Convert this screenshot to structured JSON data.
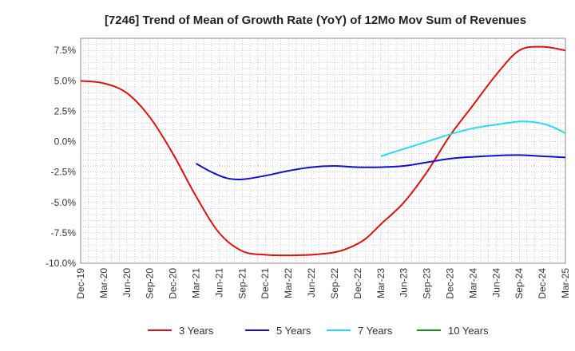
{
  "chart_data": {
    "type": "line",
    "title": "[7246]  Trend of Mean of Growth Rate (YoY) of 12Mo Mov Sum of Revenues",
    "xlabel": "",
    "ylabel": "",
    "ylim": [
      -10,
      8.5
    ],
    "yticks": [
      7.5,
      5.0,
      2.5,
      0.0,
      -2.5,
      -5.0,
      -7.5,
      -10.0
    ],
    "ytick_labels": [
      "7.5%",
      "5.0%",
      "2.5%",
      "0.0%",
      "-2.5%",
      "-5.0%",
      "-7.5%",
      "-10.0%"
    ],
    "x_tick_labels": [
      "Dec-19",
      "Mar-20",
      "Jun-20",
      "Sep-20",
      "Dec-20",
      "Mar-21",
      "Jun-21",
      "Sep-21",
      "Dec-21",
      "Mar-22",
      "Jun-22",
      "Sep-22",
      "Dec-22",
      "Mar-23",
      "Jun-23",
      "Sep-23",
      "Dec-23",
      "Mar-24",
      "Jun-24",
      "Sep-24",
      "Dec-24",
      "Mar-25"
    ],
    "x_start": "Dec-19",
    "months_total": 63,
    "grid": true,
    "legend_position": "bottom",
    "series": [
      {
        "name": "3 Years",
        "color": "#dd1111",
        "points": [
          [
            0,
            5.0
          ],
          [
            3,
            4.8
          ],
          [
            6,
            4.0
          ],
          [
            9,
            2.0
          ],
          [
            12,
            -1.0
          ],
          [
            15,
            -4.5
          ],
          [
            18,
            -7.5
          ],
          [
            21,
            -9.0
          ],
          [
            24,
            -9.3
          ],
          [
            27,
            -9.35
          ],
          [
            30,
            -9.3
          ],
          [
            33,
            -9.1
          ],
          [
            35,
            -8.7
          ],
          [
            37,
            -8.0
          ],
          [
            39,
            -6.8
          ],
          [
            42,
            -5.0
          ],
          [
            45,
            -2.5
          ],
          [
            48,
            0.5
          ],
          [
            51,
            3.0
          ],
          [
            54,
            5.5
          ],
          [
            57,
            7.5
          ],
          [
            60,
            7.8
          ],
          [
            63,
            7.5
          ]
        ]
      },
      {
        "name": "5 Years",
        "color": "#1111cc",
        "points": [
          [
            15,
            -1.8
          ],
          [
            17,
            -2.5
          ],
          [
            19,
            -3.0
          ],
          [
            21,
            -3.1
          ],
          [
            24,
            -2.8
          ],
          [
            27,
            -2.4
          ],
          [
            30,
            -2.1
          ],
          [
            33,
            -2.0
          ],
          [
            36,
            -2.1
          ],
          [
            39,
            -2.1
          ],
          [
            42,
            -2.0
          ],
          [
            45,
            -1.7
          ],
          [
            48,
            -1.4
          ],
          [
            51,
            -1.25
          ],
          [
            54,
            -1.15
          ],
          [
            57,
            -1.1
          ],
          [
            60,
            -1.2
          ],
          [
            63,
            -1.3
          ]
        ]
      },
      {
        "name": "7 Years",
        "color": "#22ddee",
        "points": [
          [
            39,
            -1.2
          ],
          [
            42,
            -0.6
          ],
          [
            45,
            0.0
          ],
          [
            48,
            0.6
          ],
          [
            51,
            1.1
          ],
          [
            54,
            1.4
          ],
          [
            57,
            1.65
          ],
          [
            59,
            1.6
          ],
          [
            61,
            1.3
          ],
          [
            63,
            0.7
          ]
        ]
      },
      {
        "name": "10 Years",
        "color": "#228822",
        "points": []
      }
    ]
  }
}
